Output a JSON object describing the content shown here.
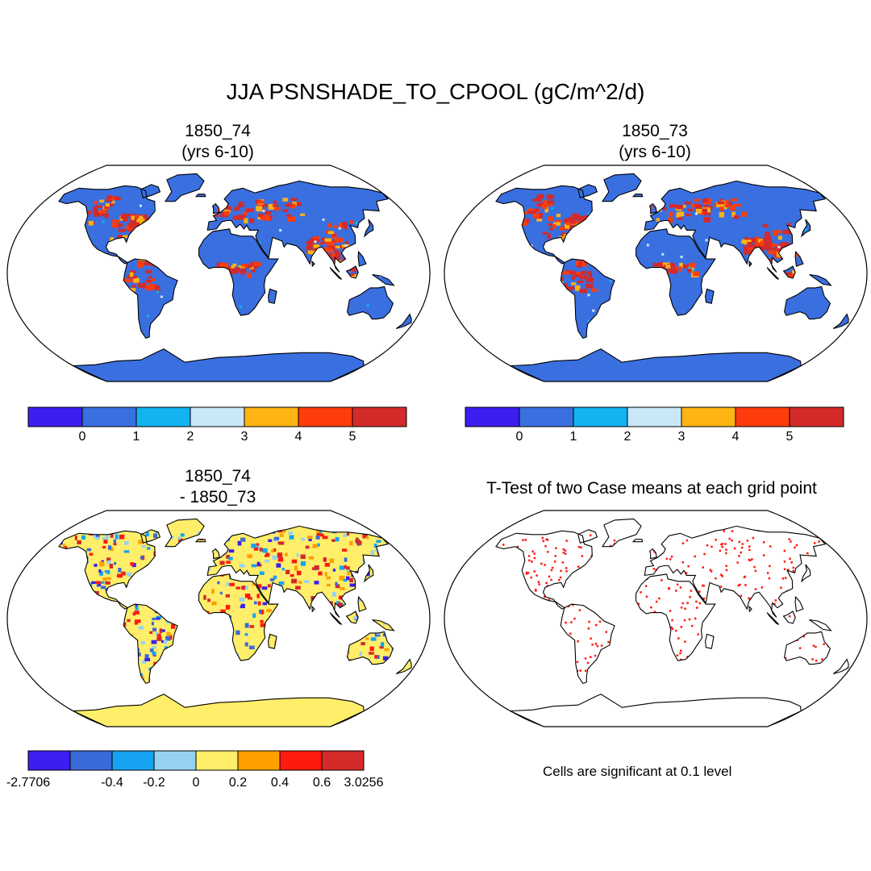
{
  "title": "JJA PSNSHADE_TO_CPOOL (gC/m^2/d)",
  "panels": [
    {
      "id": "p1",
      "title_line1": "1850_74",
      "title_line2": "(yrs 6-10)",
      "kind": "field"
    },
    {
      "id": "p2",
      "title_line1": "1850_73",
      "title_line2": "(yrs 6-10)",
      "kind": "field"
    },
    {
      "id": "p3",
      "title_line1": "1850_74",
      "title_line2": "- 1850_73",
      "kind": "diff"
    },
    {
      "id": "p4",
      "title_line1": "T-Test of two Case means at each grid point",
      "title_line2": "",
      "kind": "ttest"
    }
  ],
  "colorbars": {
    "field": {
      "colors": [
        "#3b1ff0",
        "#3a6fe0",
        "#12b3f0",
        "#c8e8f8",
        "#ffb413",
        "#ff3d0c",
        "#d42a2a"
      ],
      "labels": [
        "0",
        "1",
        "2",
        "3",
        "4",
        "5"
      ]
    },
    "diff": {
      "colors": [
        "#3b1ff0",
        "#3a6ad8",
        "#16a3f2",
        "#96d2f0",
        "#ffee6a",
        "#ffa000",
        "#ff1a10",
        "#d42a2a"
      ],
      "labels": [
        "-2.7706",
        "-0.4",
        "-0.2",
        "0",
        "0.2",
        "0.4",
        "0.6",
        "3.0256"
      ]
    }
  },
  "ttest_note": "Cells are significant at 0.1 level",
  "colors": {
    "land_field": "#3a6fe0",
    "land_diff": "#ffee6a",
    "signif": "#ff1a10",
    "outline": "#000000"
  }
}
